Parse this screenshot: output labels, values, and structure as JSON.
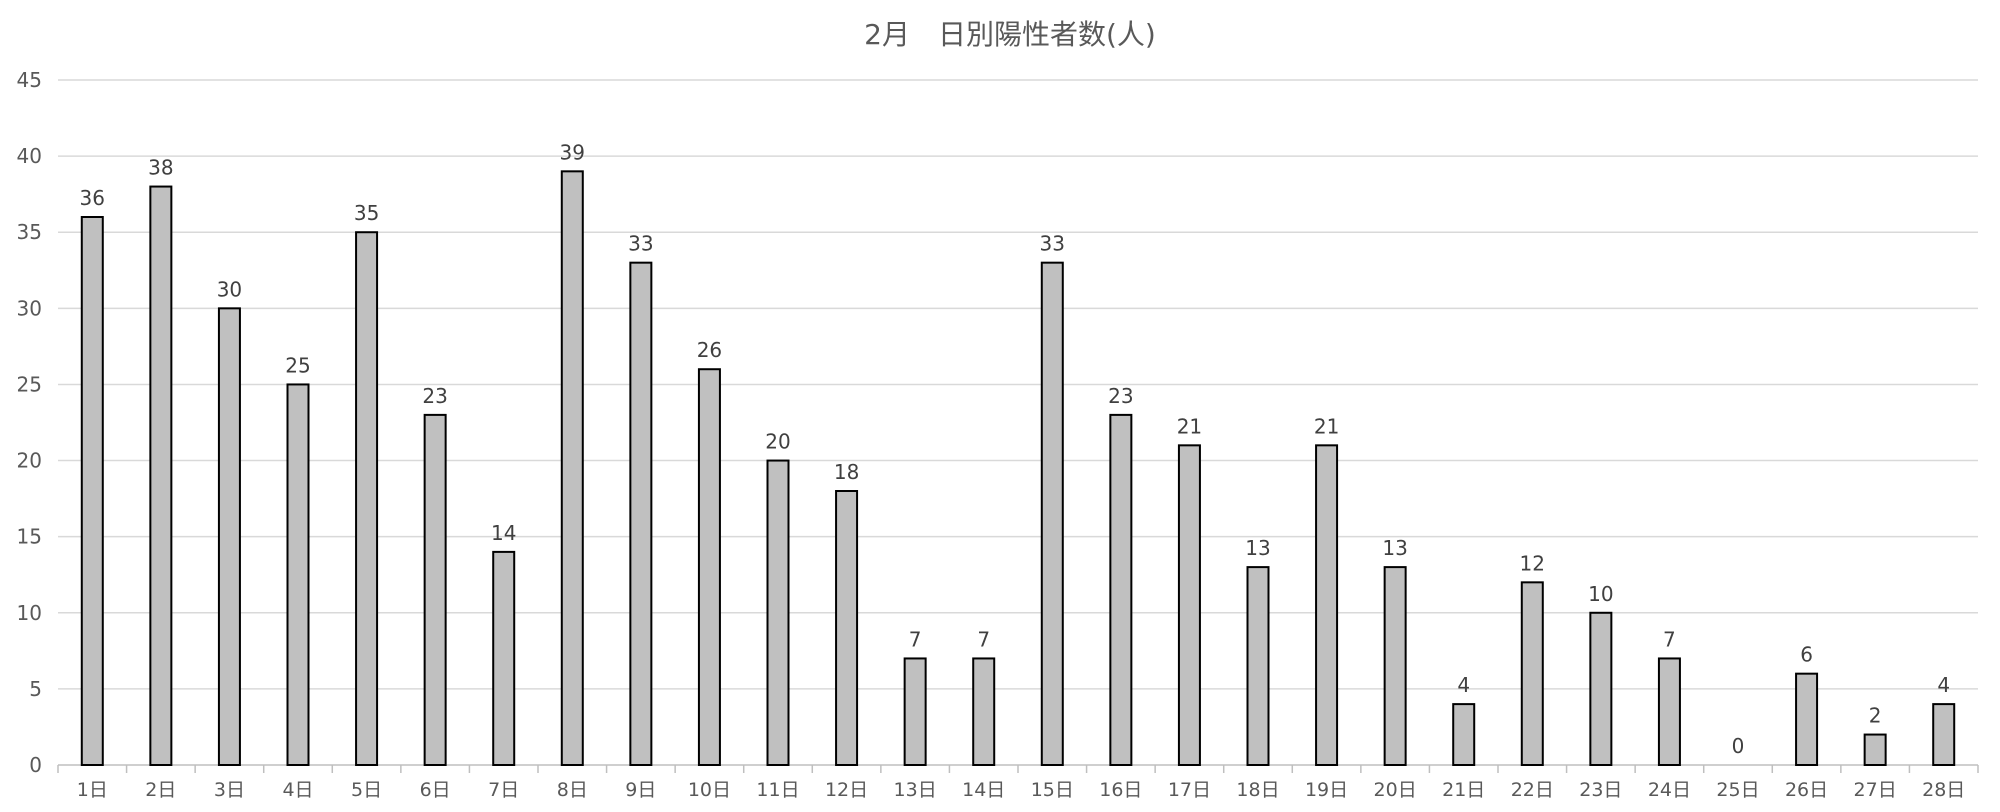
{
  "chart_data": {
    "type": "bar",
    "title": "2月　日別陽性者数(人)",
    "categories": [
      "1日",
      "2日",
      "3日",
      "4日",
      "5日",
      "6日",
      "7日",
      "8日",
      "9日",
      "10日",
      "11日",
      "12日",
      "13日",
      "14日",
      "15日",
      "16日",
      "17日",
      "18日",
      "19日",
      "20日",
      "21日",
      "22日",
      "23日",
      "24日",
      "25日",
      "26日",
      "27日",
      "28日"
    ],
    "values": [
      36,
      38,
      30,
      25,
      35,
      23,
      14,
      39,
      33,
      26,
      20,
      18,
      7,
      7,
      33,
      23,
      21,
      13,
      21,
      13,
      4,
      12,
      10,
      7,
      0,
      6,
      2,
      4
    ],
    "ylim": [
      0,
      45
    ],
    "yticks": [
      0,
      5,
      10,
      15,
      20,
      25,
      30,
      35,
      40,
      45
    ],
    "xlabel": "",
    "ylabel": "",
    "grid": true,
    "legend": "none",
    "data_labels": true,
    "colors": {
      "bar_fill": "#c0c0c0",
      "bar_edge": "#000000",
      "grid": "#d9d9d9"
    }
  }
}
